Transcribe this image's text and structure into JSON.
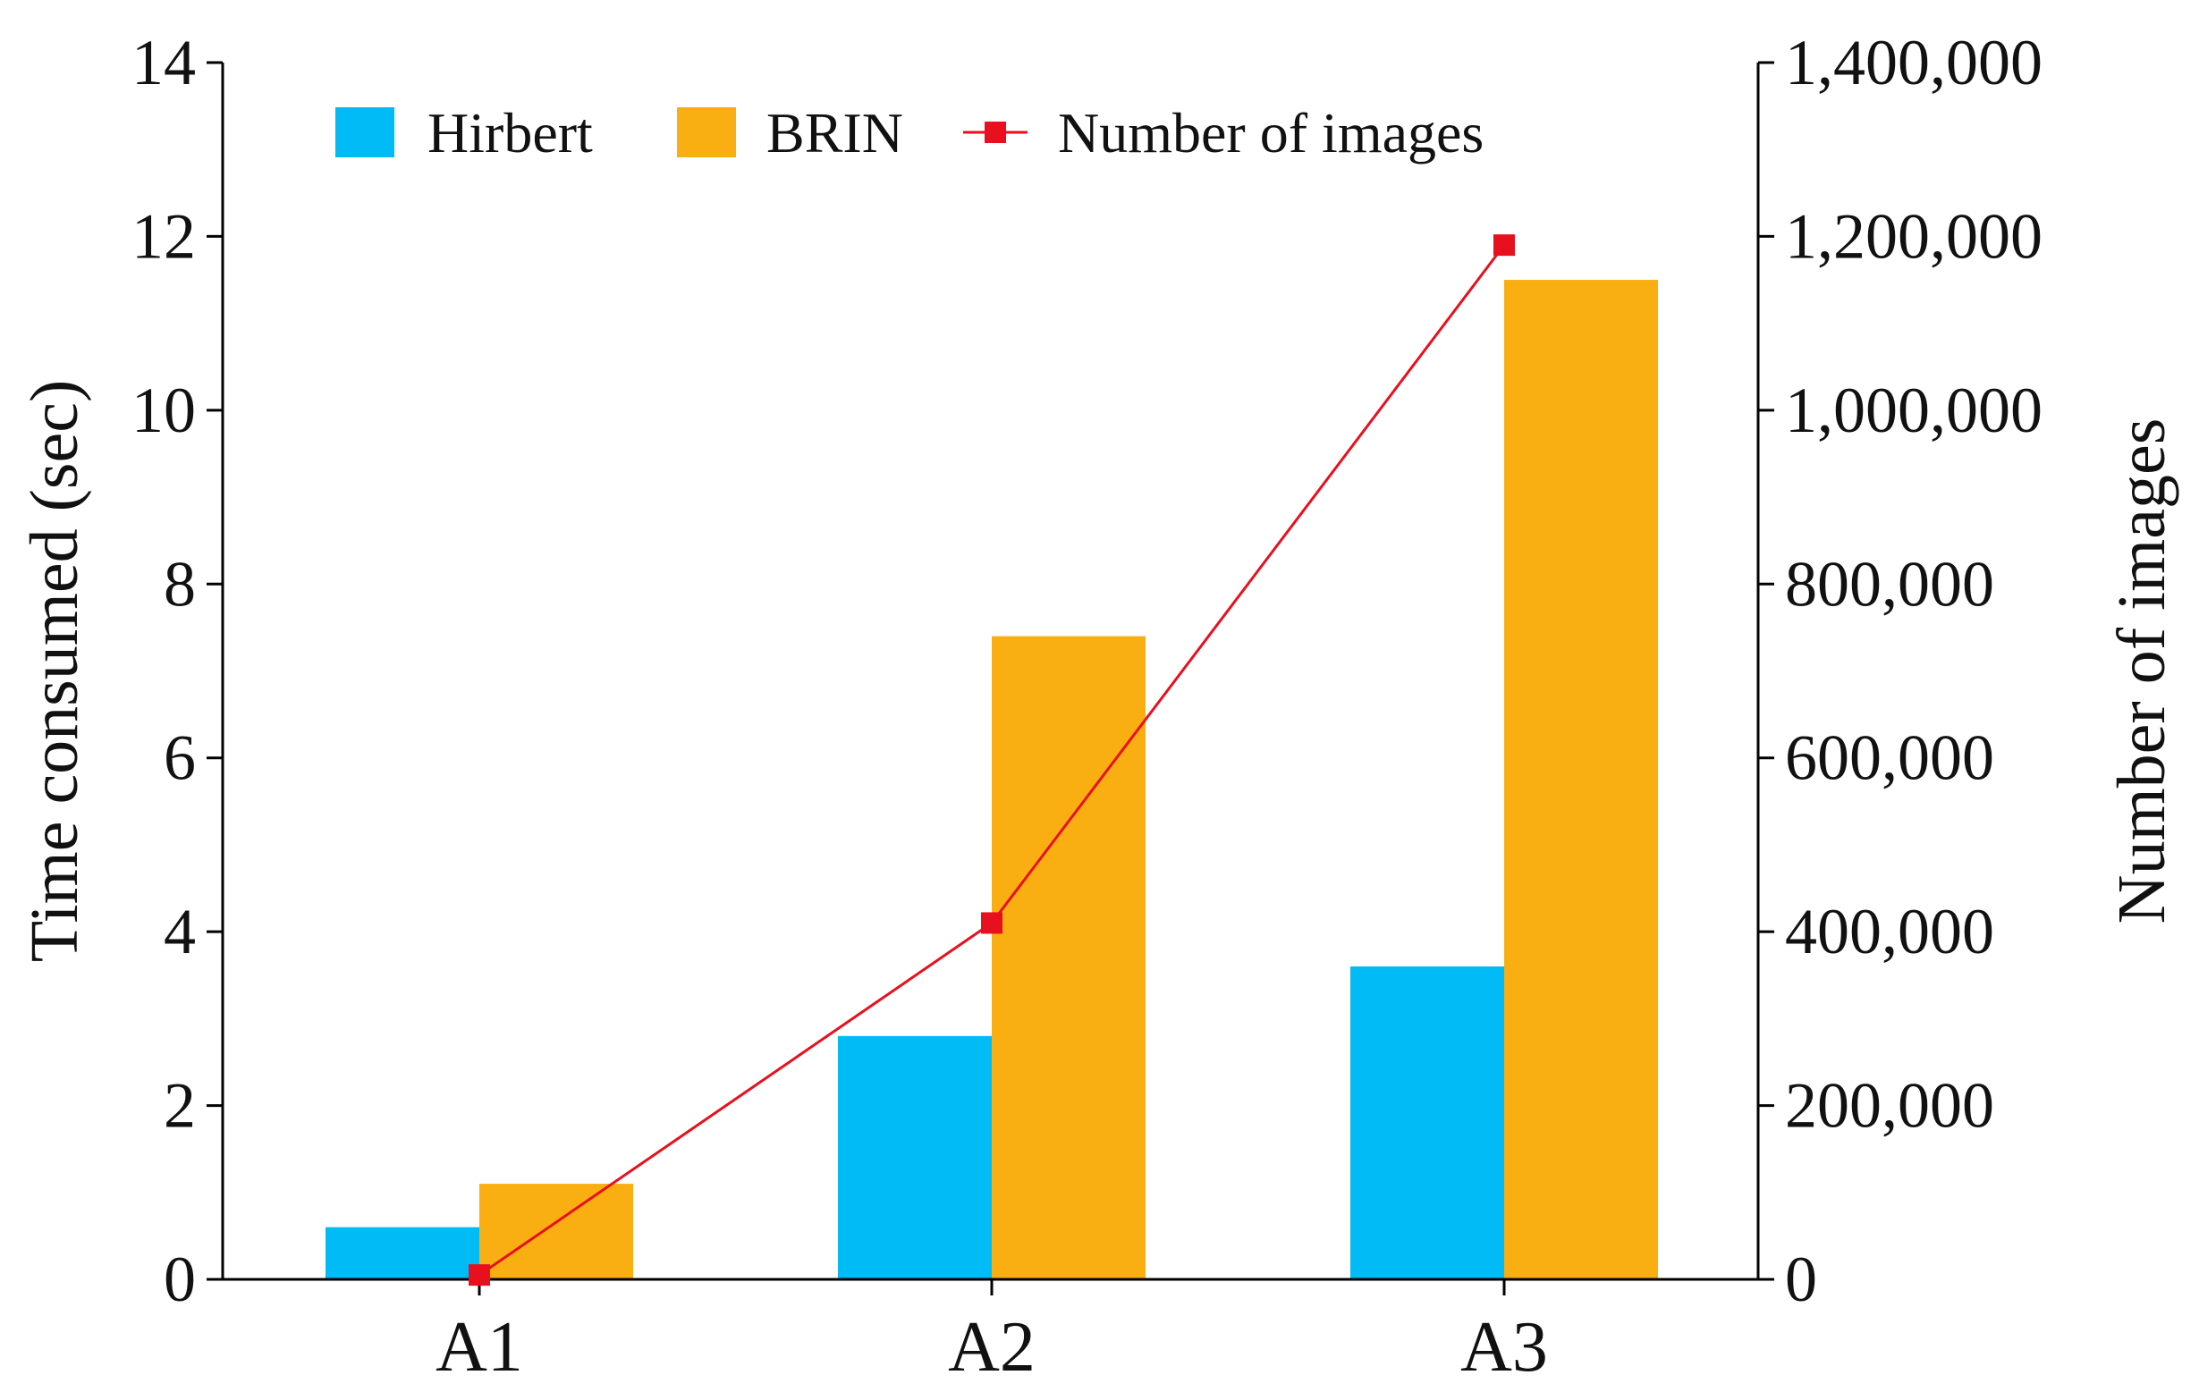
{
  "chart_data": {
    "type": "bar",
    "categories": [
      "A1",
      "A2",
      "A3"
    ],
    "series": [
      {
        "name": "Hirbert",
        "type": "bar",
        "axis": "left",
        "color": "#00BBF5",
        "values": [
          0.6,
          2.8,
          3.6
        ]
      },
      {
        "name": "BRIN",
        "type": "bar",
        "axis": "left",
        "color": "#F9AF12",
        "values": [
          1.1,
          7.4,
          11.5
        ]
      },
      {
        "name": "Number of images",
        "type": "line",
        "axis": "right",
        "color": "#E8101E",
        "marker": "square",
        "values": [
          5000,
          410000,
          1190000
        ]
      }
    ],
    "ylabel": "Time consumed (sec)",
    "y2label": "Number of images",
    "ylim": [
      0,
      14
    ],
    "y2lim": [
      0,
      1400000
    ],
    "yticks": [
      "0",
      "2",
      "4",
      "6",
      "8",
      "10",
      "12",
      "14"
    ],
    "y2ticks": [
      "0",
      "200,000",
      "400,000",
      "600,000",
      "800,000",
      "1,000,000",
      "1,200,000",
      "1,400,000"
    ],
    "grid": false,
    "legend_position": "top"
  }
}
